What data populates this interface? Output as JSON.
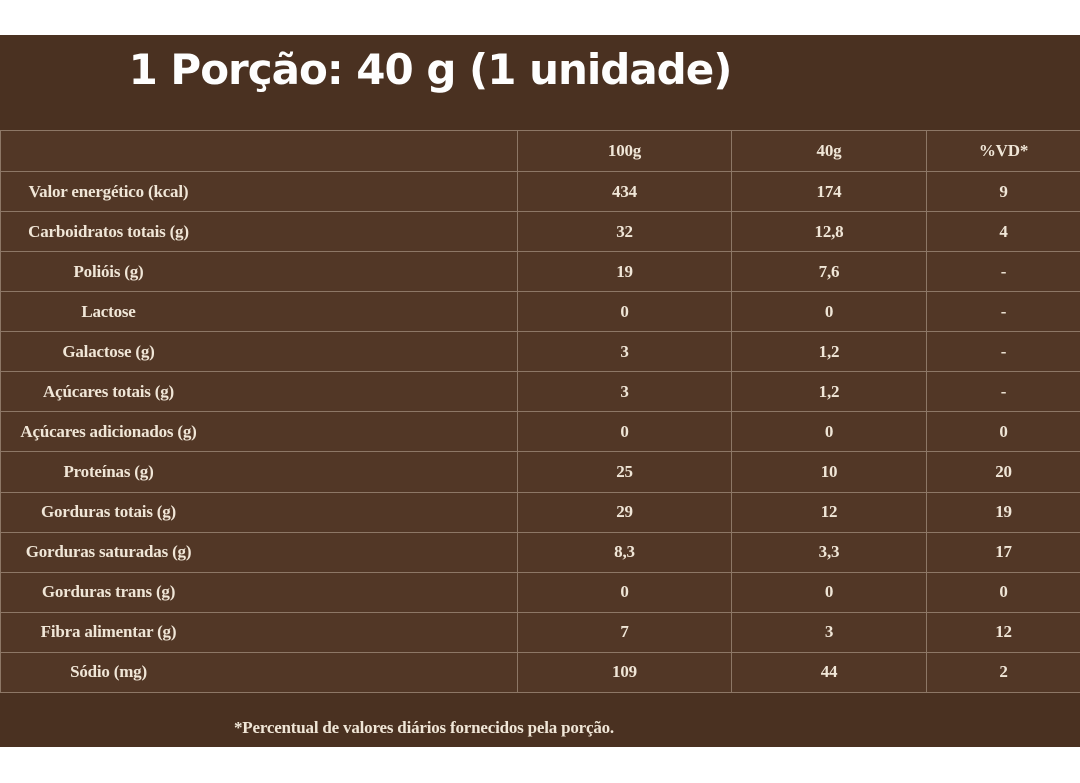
{
  "header": {
    "title": "1 Porção: 40 g (1 unidade)"
  },
  "colors": {
    "band_bg": "#4a3121",
    "table_bg": "#523726",
    "grid_line": "#8d7766",
    "table_text": "#f0e6d7",
    "title_text": "#fefefe",
    "page_margin_bg": "#ffffff"
  },
  "table": {
    "columns": [
      "",
      "100g",
      "40g",
      "%VD*"
    ],
    "rows": [
      {
        "label": "Valor energético (kcal)",
        "g100": "434",
        "g40": "174",
        "vd": "9"
      },
      {
        "label": "Carboidratos totais (g)",
        "g100": "32",
        "g40": "12,8",
        "vd": "4"
      },
      {
        "label": "Polióis (g)",
        "g100": "19",
        "g40": "7,6",
        "vd": "-"
      },
      {
        "label": "Lactose",
        "g100": "0",
        "g40": "0",
        "vd": "-"
      },
      {
        "label": "Galactose (g)",
        "g100": "3",
        "g40": "1,2",
        "vd": "-"
      },
      {
        "label": "Açúcares totais (g)",
        "g100": "3",
        "g40": "1,2",
        "vd": "-"
      },
      {
        "label": "Açúcares adicionados (g)",
        "g100": "0",
        "g40": "0",
        "vd": "0"
      },
      {
        "label": "Proteínas (g)",
        "g100": "25",
        "g40": "10",
        "vd": "20"
      },
      {
        "label": "Gorduras totais (g)",
        "g100": "29",
        "g40": "12",
        "vd": "19"
      },
      {
        "label": "Gorduras saturadas (g)",
        "g100": "8,3",
        "g40": "3,3",
        "vd": "17"
      },
      {
        "label": "Gorduras trans (g)",
        "g100": "0",
        "g40": "0",
        "vd": "0"
      },
      {
        "label": "Fibra alimentar (g)",
        "g100": "7",
        "g40": "3",
        "vd": "12"
      },
      {
        "label": "Sódio (mg)",
        "g100": "109",
        "g40": "44",
        "vd": "2"
      }
    ]
  },
  "footer": {
    "note": "*Percentual de valores diários fornecidos pela porção."
  }
}
